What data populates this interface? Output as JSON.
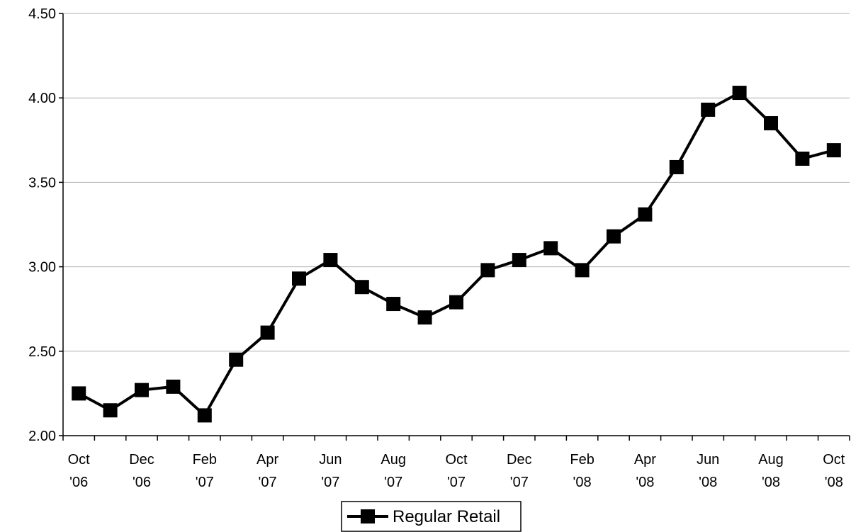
{
  "chart_data": {
    "type": "line",
    "title": "",
    "xlabel": "",
    "ylabel": "",
    "ylim": [
      2.0,
      4.5
    ],
    "yticks": [
      "2.00",
      "2.50",
      "3.00",
      "3.50",
      "4.00",
      "4.50"
    ],
    "grid": true,
    "legend_position": "bottom-center",
    "x": [
      "Oct '06",
      "Nov '06",
      "Dec '06",
      "Jan '07",
      "Feb '07",
      "Mar '07",
      "Apr '07",
      "May '07",
      "Jun '07",
      "Jul '07",
      "Aug '07",
      "Sep '07",
      "Oct '07",
      "Nov '07",
      "Dec '07",
      "Jan '08",
      "Feb '08",
      "Mar '08",
      "Apr '08",
      "May '08",
      "Jun '08",
      "Jul '08",
      "Aug '08",
      "Sep '08",
      "Oct '08"
    ],
    "xtick_labels": [
      [
        "Oct",
        "'06"
      ],
      [
        "Dec",
        "'06"
      ],
      [
        "Feb",
        "'07"
      ],
      [
        "Apr",
        "'07"
      ],
      [
        "Jun",
        "'07"
      ],
      [
        "Aug",
        "'07"
      ],
      [
        "Oct",
        "'07"
      ],
      [
        "Dec",
        "'07"
      ],
      [
        "Feb",
        "'08"
      ],
      [
        "Apr",
        "'08"
      ],
      [
        "Jun",
        "'08"
      ],
      [
        "Aug",
        "'08"
      ],
      [
        "Oct",
        "'08"
      ]
    ],
    "series": [
      {
        "name": "Regular Retail",
        "color": "#000000",
        "marker": "square",
        "values": [
          2.25,
          2.15,
          2.27,
          2.29,
          2.12,
          2.45,
          2.61,
          2.93,
          3.04,
          2.88,
          2.78,
          2.7,
          2.79,
          2.98,
          3.04,
          3.11,
          2.98,
          3.18,
          3.31,
          3.59,
          3.93,
          4.03,
          3.85,
          3.64,
          3.69
        ]
      }
    ]
  }
}
